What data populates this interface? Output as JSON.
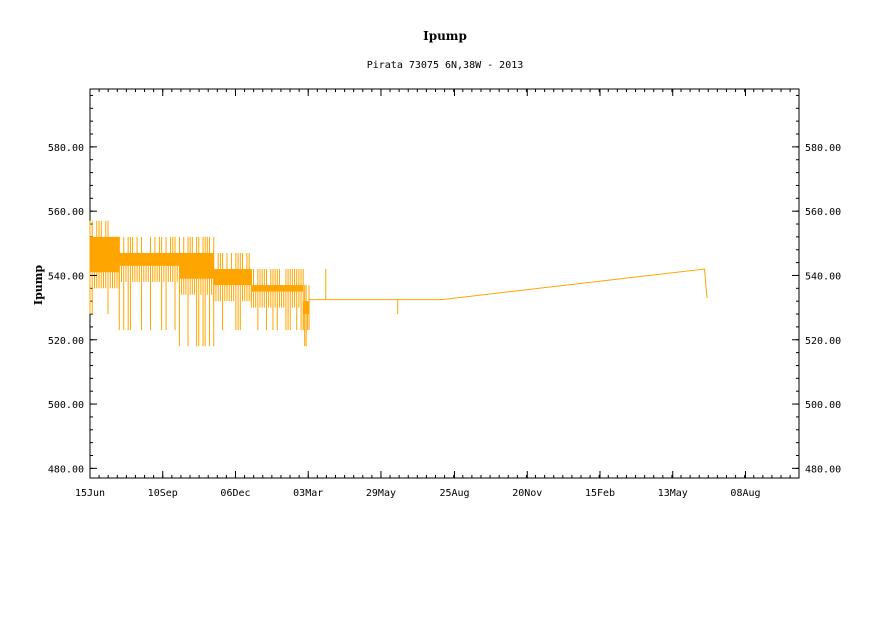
{
  "chart_data": {
    "type": "line",
    "title": "Ipump",
    "subtitle": "Pirata 73075 6N,38W - 2013",
    "ylabel": "Ipump",
    "xlabel": "",
    "ylim": [
      477,
      598
    ],
    "x_range": [
      "2013-06-15",
      "2015-10-11"
    ],
    "grid": false,
    "legend": "none",
    "color": "#ffa500",
    "yticks": [
      {
        "value": 480,
        "label": "480.00"
      },
      {
        "value": 500,
        "label": "500.00"
      },
      {
        "value": 520,
        "label": "520.00"
      },
      {
        "value": 540,
        "label": "540.00"
      },
      {
        "value": 560,
        "label": "560.00"
      },
      {
        "value": 580,
        "label": "580.00"
      }
    ],
    "xticks": [
      {
        "date": "2013-06-15",
        "label": "15Jun"
      },
      {
        "date": "2013-09-10",
        "label": "10Sep"
      },
      {
        "date": "2013-12-06",
        "label": "06Dec"
      },
      {
        "date": "2014-03-03",
        "label": "03Mar"
      },
      {
        "date": "2014-05-29",
        "label": "29May"
      },
      {
        "date": "2014-08-25",
        "label": "25Aug"
      },
      {
        "date": "2014-11-20",
        "label": "20Nov"
      },
      {
        "date": "2015-02-15",
        "label": "15Feb"
      },
      {
        "date": "2015-05-13",
        "label": "13May"
      },
      {
        "date": "2015-08-08",
        "label": "08Aug"
      }
    ],
    "series": [
      {
        "name": "",
        "segments": [
          {
            "start": "2013-06-15",
            "end": "2013-07-20",
            "low": 528,
            "high": 557,
            "level": 545
          },
          {
            "start": "2013-07-20",
            "end": "2013-09-30",
            "low": 523,
            "high": 552,
            "level": 547
          },
          {
            "start": "2013-09-30",
            "end": "2013-11-10",
            "low": 518,
            "high": 552,
            "level": 543
          },
          {
            "start": "2013-11-10",
            "end": "2013-12-25",
            "low": 523,
            "high": 547,
            "level": 541
          },
          {
            "start": "2013-12-25",
            "end": "2014-02-25",
            "low": 523,
            "high": 542,
            "level": 539
          },
          {
            "start": "2014-02-25",
            "end": "2014-03-04",
            "low": 518,
            "high": 537,
            "level": 532
          }
        ],
        "points": [
          {
            "x": "2014-03-04",
            "y": 532.5
          },
          {
            "x": "2014-03-24",
            "y": 532.5
          },
          {
            "x": "2014-03-24",
            "y": 542
          },
          {
            "x": "2014-03-24",
            "y": 532.5
          },
          {
            "x": "2014-06-18",
            "y": 532.5
          },
          {
            "x": "2014-06-18",
            "y": 528
          },
          {
            "x": "2014-06-18",
            "y": 532.5
          },
          {
            "x": "2014-08-10",
            "y": 532.5
          },
          {
            "x": "2015-06-20",
            "y": 542
          },
          {
            "x": "2015-06-23",
            "y": 533
          }
        ]
      }
    ]
  }
}
